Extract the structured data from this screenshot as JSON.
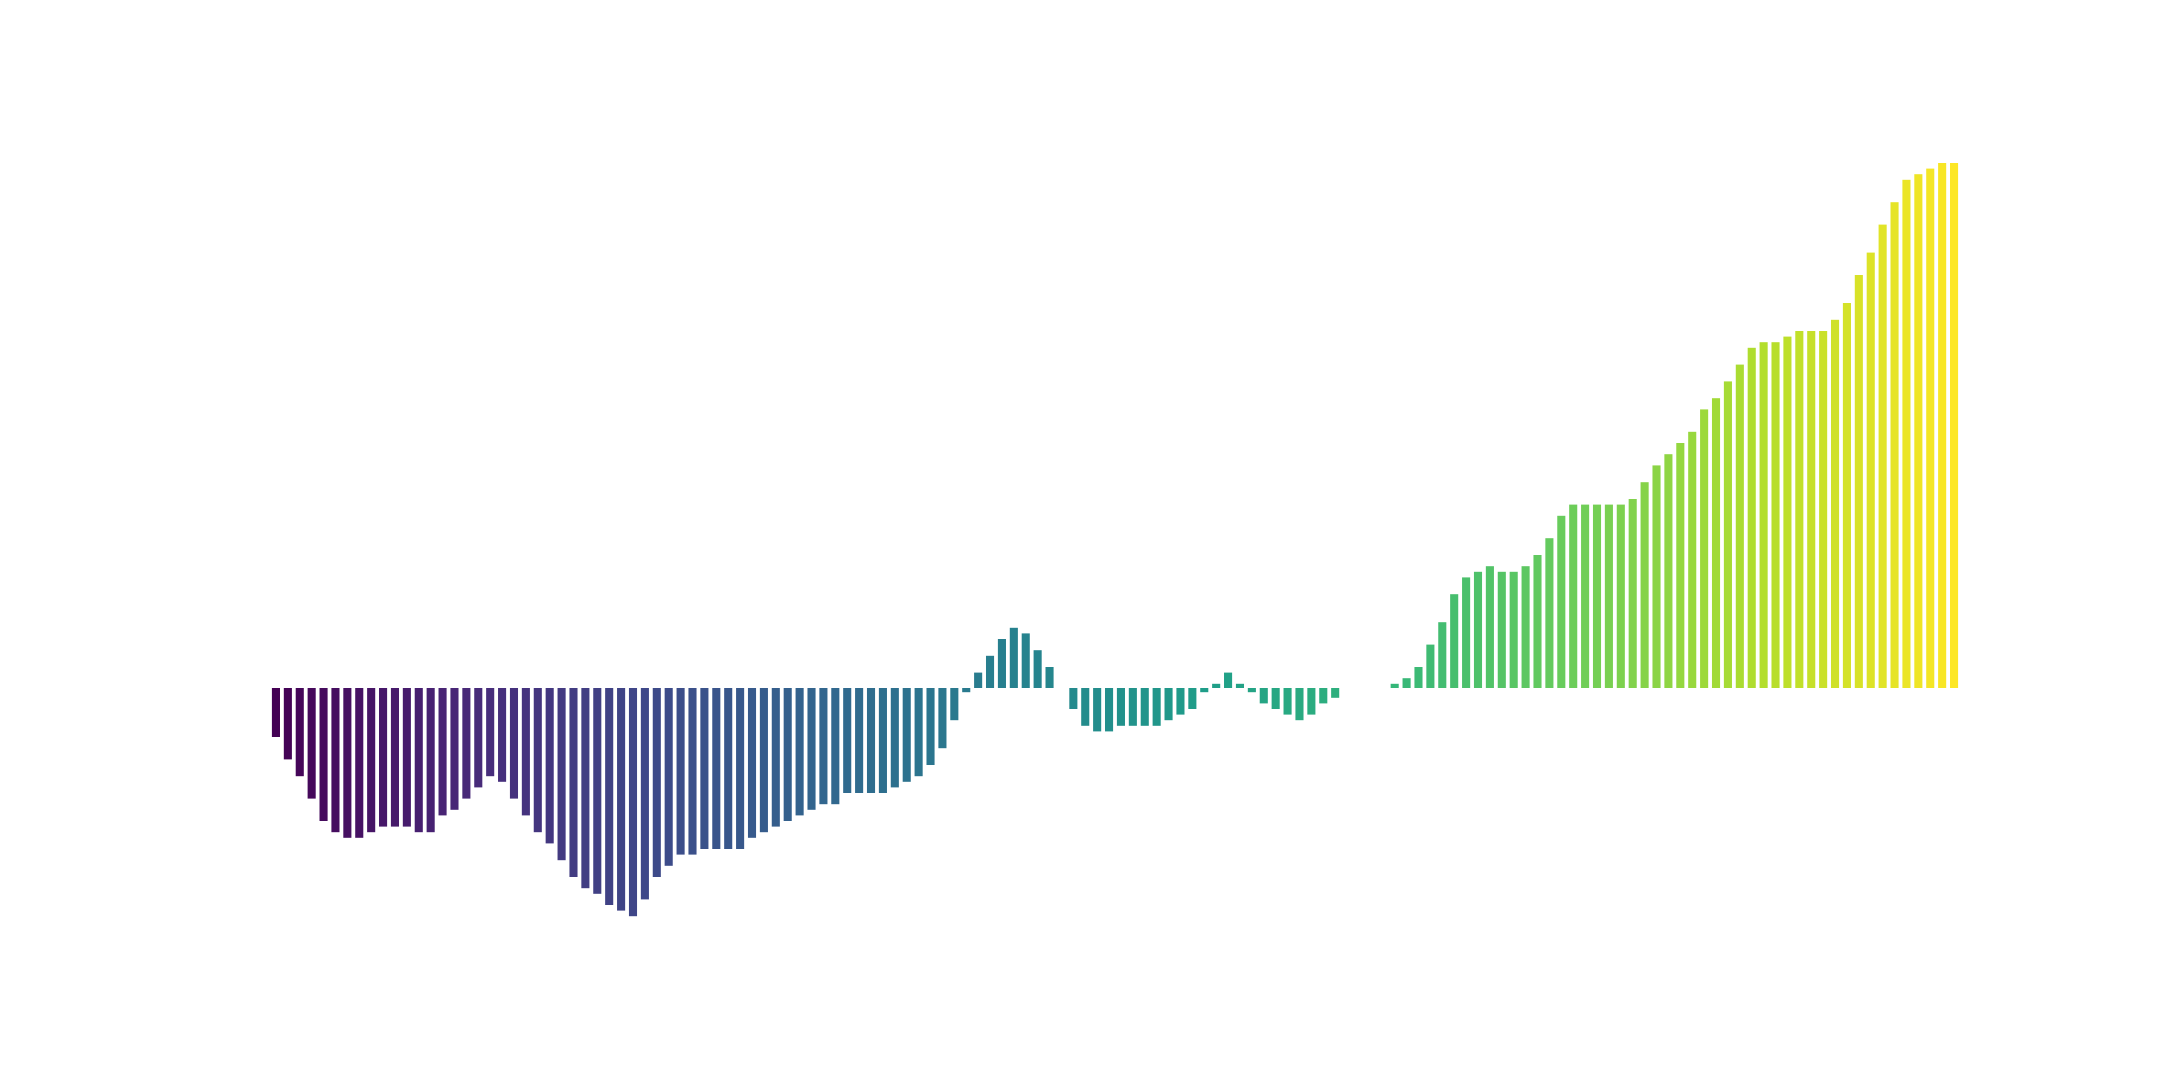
{
  "chart_data": {
    "type": "bar",
    "title": "",
    "xlabel": "",
    "ylabel": "",
    "axes_visible": false,
    "grid": false,
    "colormap": "viridis",
    "colormap_stops": [
      "#440154",
      "#482878",
      "#3e4989",
      "#31688e",
      "#26828e",
      "#1f9e89",
      "#35b779",
      "#6ece58",
      "#b5de2b",
      "#fde725"
    ],
    "ylim": [
      -16.5,
      37.5
    ],
    "values": [
      -3.5,
      -5.1,
      -6.3,
      -7.9,
      -9.5,
      -10.3,
      -10.7,
      -10.7,
      -10.3,
      -9.9,
      -9.9,
      -9.9,
      -10.3,
      -10.3,
      -9.1,
      -8.7,
      -7.9,
      -7.1,
      -6.3,
      -6.7,
      -7.9,
      -9.1,
      -10.3,
      -11.1,
      -12.3,
      -13.5,
      -14.3,
      -14.7,
      -15.5,
      -15.9,
      -16.3,
      -15.1,
      -13.5,
      -12.7,
      -11.9,
      -11.9,
      -11.5,
      -11.5,
      -11.5,
      -11.5,
      -10.7,
      -10.3,
      -9.9,
      -9.5,
      -9.1,
      -8.7,
      -8.3,
      -8.3,
      -7.5,
      -7.5,
      -7.5,
      -7.5,
      -7.1,
      -6.7,
      -6.3,
      -5.5,
      -4.3,
      -2.3,
      -0.3,
      1.1,
      2.3,
      3.5,
      4.3,
      3.9,
      2.7,
      1.5,
      0,
      -1.5,
      -2.7,
      -3.1,
      -3.1,
      -2.7,
      -2.7,
      -2.7,
      -2.7,
      -2.3,
      -1.9,
      -1.5,
      -0.3,
      0.3,
      1.1,
      0.3,
      -0.3,
      -1.1,
      -1.5,
      -1.9,
      -2.3,
      -1.9,
      -1.1,
      -0.7,
      0,
      0,
      0,
      0,
      0.3,
      0.7,
      1.5,
      3.1,
      4.7,
      6.7,
      7.9,
      8.3,
      8.7,
      8.3,
      8.3,
      8.7,
      9.5,
      10.7,
      12.3,
      13.1,
      13.1,
      13.1,
      13.1,
      13.1,
      13.5,
      14.7,
      15.9,
      16.7,
      17.5,
      18.3,
      19.9,
      20.7,
      21.9,
      23.1,
      24.3,
      24.7,
      24.7,
      25.1,
      25.5,
      25.5,
      25.5,
      26.3,
      27.5,
      29.5,
      31.1,
      33.1,
      34.7,
      36.3,
      36.7,
      37.1,
      37.5,
      37.5
    ]
  }
}
